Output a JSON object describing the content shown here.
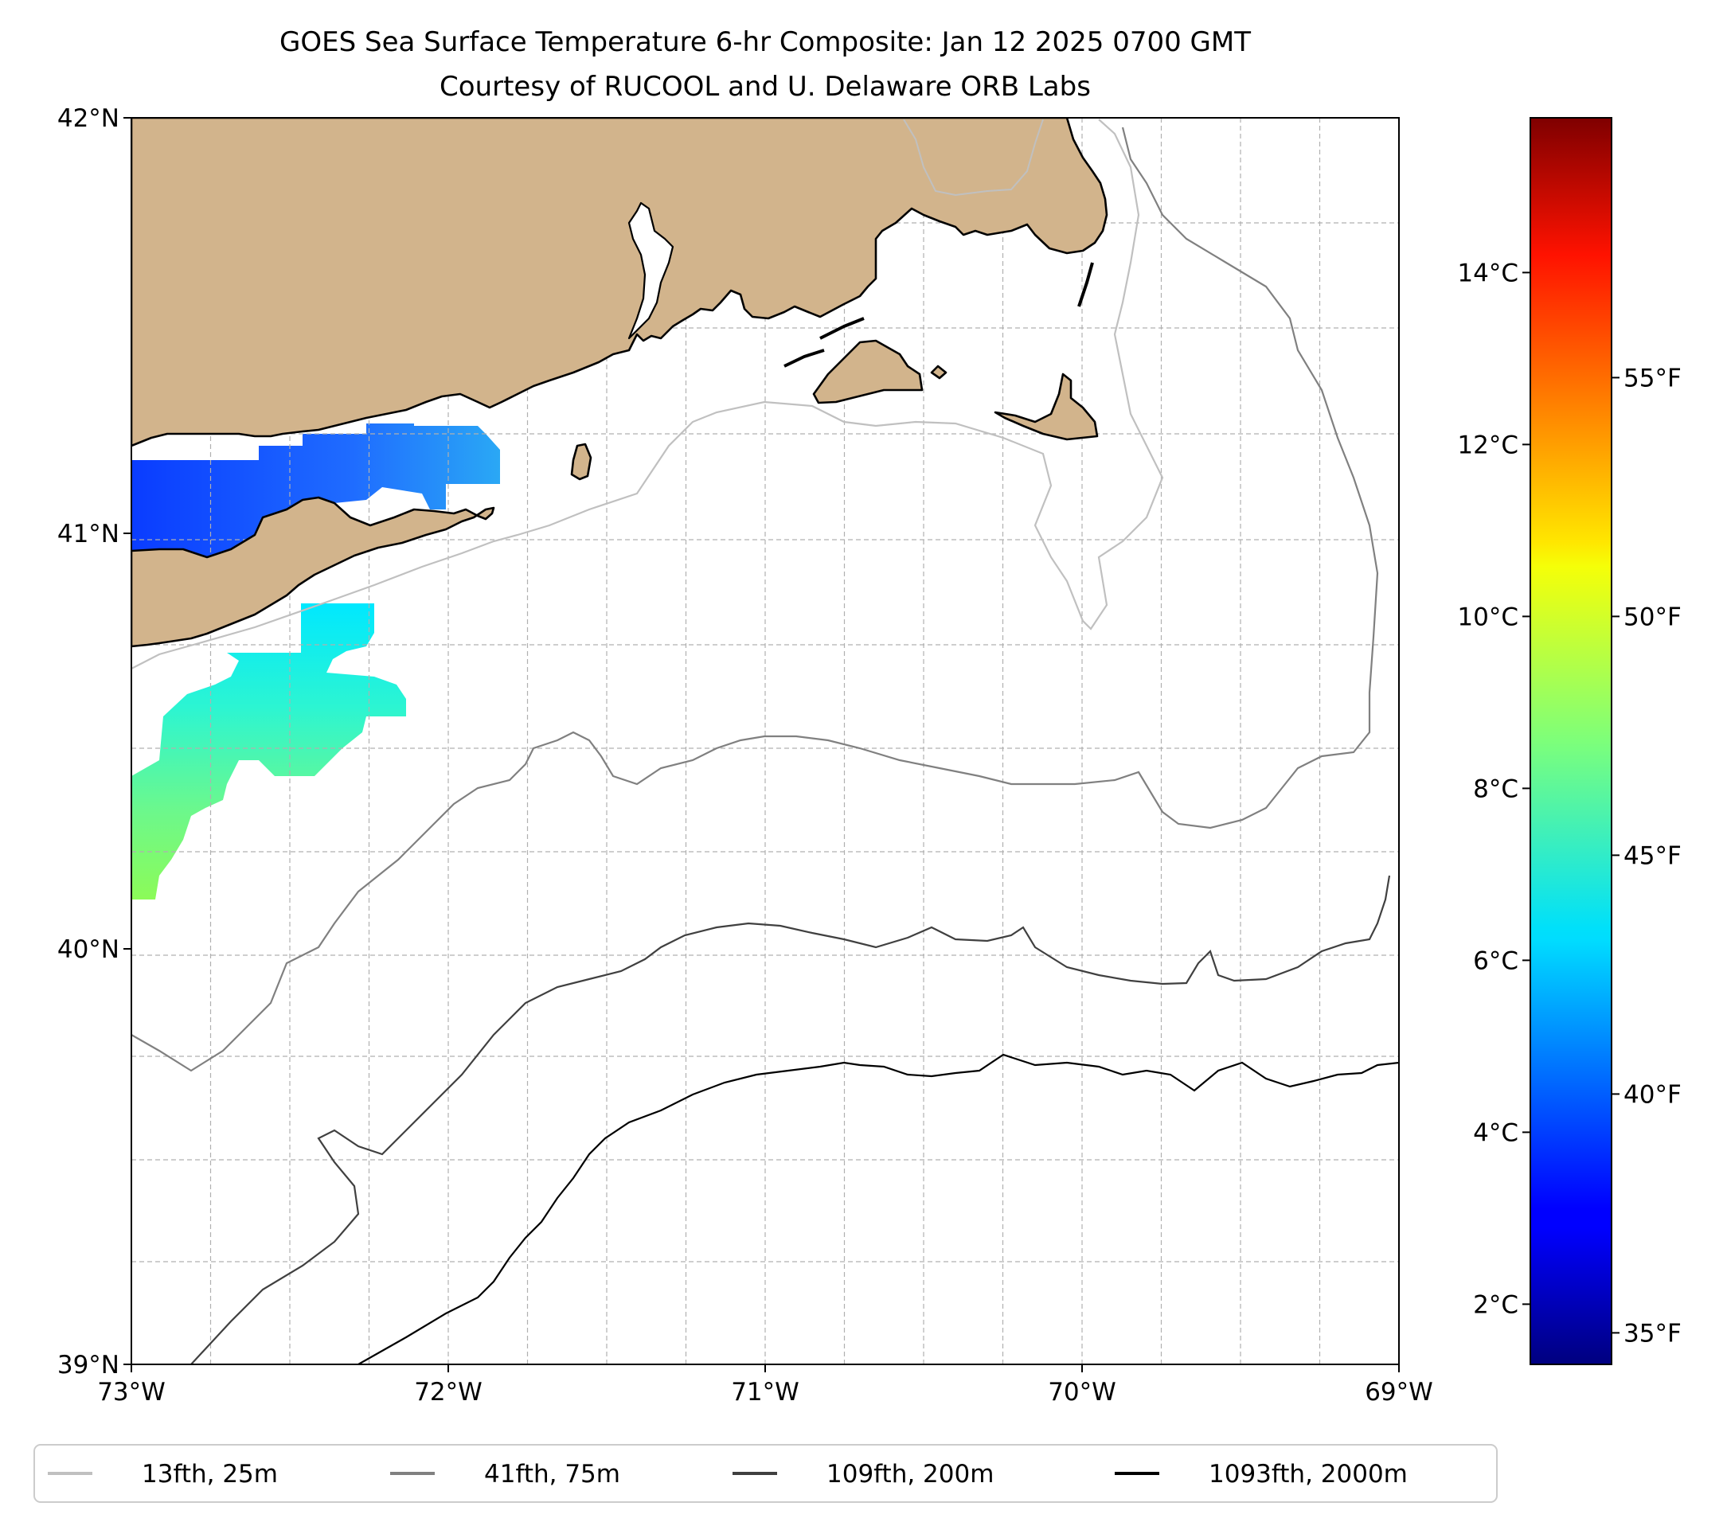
{
  "title": {
    "line1": "GOES Sea Surface Temperature 6-hr Composite: Jan 12 2025 0700 GMT",
    "line2": "Courtesy of RUCOOL and U. Delaware ORB Labs"
  },
  "axes": {
    "lon_range": [
      -73,
      -69
    ],
    "lat_range": [
      39,
      42
    ],
    "x_ticks": [
      {
        "value": -73,
        "label": "73°W"
      },
      {
        "value": -72,
        "label": "72°W"
      },
      {
        "value": -71,
        "label": "71°W"
      },
      {
        "value": -70,
        "label": "70°W"
      },
      {
        "value": -69,
        "label": "69°W"
      }
    ],
    "y_ticks": [
      {
        "value": 42,
        "label": "42°N"
      },
      {
        "value": 41,
        "label": "41°N"
      },
      {
        "value": 40,
        "label": "40°N"
      },
      {
        "value": 39,
        "label": "39°N"
      }
    ],
    "grid": true
  },
  "colorbar": {
    "colormap": "jet",
    "celsius_range": [
      1.3,
      15.8
    ],
    "celsius_ticks": [
      {
        "value": 2,
        "label": "2°C"
      },
      {
        "value": 4,
        "label": "4°C"
      },
      {
        "value": 6,
        "label": "6°C"
      },
      {
        "value": 8,
        "label": "8°C"
      },
      {
        "value": 10,
        "label": "10°C"
      },
      {
        "value": 12,
        "label": "12°C"
      },
      {
        "value": 14,
        "label": "14°C"
      }
    ],
    "fahrenheit_ticks": [
      {
        "value": 35,
        "label": "35°F"
      },
      {
        "value": 40,
        "label": "40°F"
      },
      {
        "value": 45,
        "label": "45°F"
      },
      {
        "value": 50,
        "label": "50°F"
      },
      {
        "value": 55,
        "label": "55°F"
      }
    ]
  },
  "legend": {
    "placement": "bottom",
    "items": [
      {
        "label": "13fth, 25m",
        "color": "#c0c0c0"
      },
      {
        "label": "41fth, 75m",
        "color": "#808080"
      },
      {
        "label": "109fth, 200m",
        "color": "#404040"
      },
      {
        "label": "1093fth, 2000m",
        "color": "#000000"
      }
    ]
  },
  "colors": {
    "land": "#d2b48c",
    "coast": "#000000",
    "grid": "#b0b0b0"
  }
}
